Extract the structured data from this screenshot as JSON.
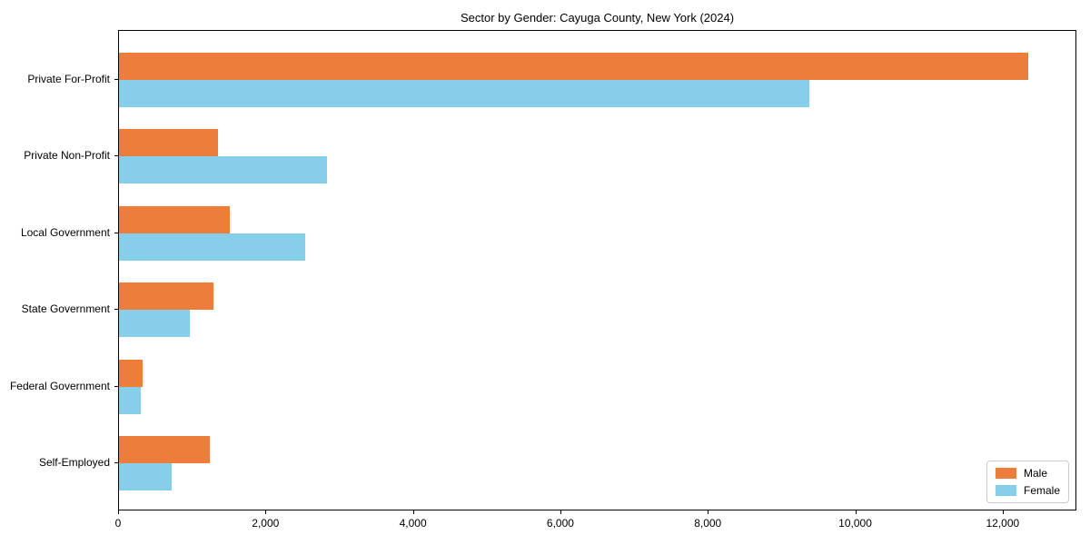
{
  "chart_data": {
    "type": "bar",
    "orientation": "horizontal",
    "title": "Sector by Gender: Cayuga County, New York (2024)",
    "categories": [
      "Private For-Profit",
      "Private Non-Profit",
      "Local Government",
      "State Government",
      "Federal Government",
      "Self-Employed"
    ],
    "series": [
      {
        "name": "Male",
        "color": "#ed7d3a",
        "values": [
          12360,
          1340,
          1510,
          1280,
          320,
          1240
        ]
      },
      {
        "name": "Female",
        "color": "#87ceeb",
        "values": [
          9380,
          2830,
          2530,
          960,
          300,
          720
        ]
      }
    ],
    "xlim": [
      0,
      13000
    ],
    "xticks": [
      0,
      2000,
      4000,
      6000,
      8000,
      10000,
      12000
    ],
    "xtick_labels": [
      "0",
      "2,000",
      "4,000",
      "6,000",
      "8,000",
      "10,000",
      "12,000"
    ],
    "xlabel": "",
    "ylabel": "",
    "grid": false,
    "legend_position": "lower right",
    "background_color": "#ffffff",
    "spine_color": "#000000"
  }
}
